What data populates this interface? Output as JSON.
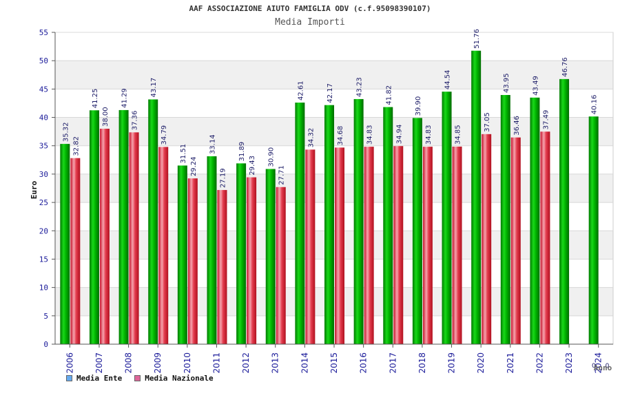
{
  "chart_data": {
    "type": "bar",
    "title": "AAF ASSOCIAZIONE AIUTO FAMIGLIA ODV (c.f.95098390107)",
    "subtitle": "Media Importi",
    "xlabel": "Anno",
    "ylabel": "Euro",
    "ylim": [
      0,
      55
    ],
    "yticks": [
      "0",
      "5",
      "10",
      "15",
      "20",
      "25",
      "30",
      "35",
      "40",
      "45",
      "50",
      "55"
    ],
    "grid": true,
    "legend_placement": "bottom-left",
    "categories": [
      "2006",
      "2007",
      "2008",
      "2009",
      "2010",
      "2011",
      "2012",
      "2013",
      "2014",
      "2015",
      "2016",
      "2017",
      "2018",
      "2019",
      "2020",
      "2021",
      "2022",
      "2023",
      "2024"
    ],
    "series": [
      {
        "name": "Media Ente",
        "color": "#00aa00",
        "legend_color": "#66aaee",
        "values": [
          35.32,
          41.25,
          41.29,
          43.17,
          31.51,
          33.14,
          31.89,
          30.9,
          42.61,
          42.17,
          43.23,
          41.82,
          39.9,
          44.54,
          51.76,
          43.95,
          43.49,
          46.76,
          40.16
        ],
        "labels": [
          "35.32",
          "41.25",
          "41.29",
          "43.17",
          "31.51",
          "33.14",
          "31.89",
          "30.90",
          "42.61",
          "42.17",
          "43.23",
          "41.82",
          "39.90",
          "44.54",
          "51.76",
          "43.95",
          "43.49",
          "46.76",
          "40.16"
        ]
      },
      {
        "name": "Media Nazionale",
        "color": "#dd2233",
        "legend_color": "#dd6699",
        "values": [
          32.82,
          38.0,
          37.36,
          34.79,
          29.24,
          27.19,
          29.43,
          27.71,
          34.32,
          34.68,
          34.83,
          34.94,
          34.83,
          34.85,
          37.05,
          36.46,
          37.49,
          null,
          null
        ],
        "labels": [
          "32.82",
          "38.00",
          "37.36",
          "34.79",
          "29.24",
          "27.19",
          "29.43",
          "27.71",
          "34.32",
          "34.68",
          "34.83",
          "34.94",
          "34.83",
          "34.85",
          "37.05",
          "36.46",
          "37.49",
          "",
          ""
        ]
      }
    ],
    "extra_x_marks": [
      "0",
      "0"
    ]
  }
}
